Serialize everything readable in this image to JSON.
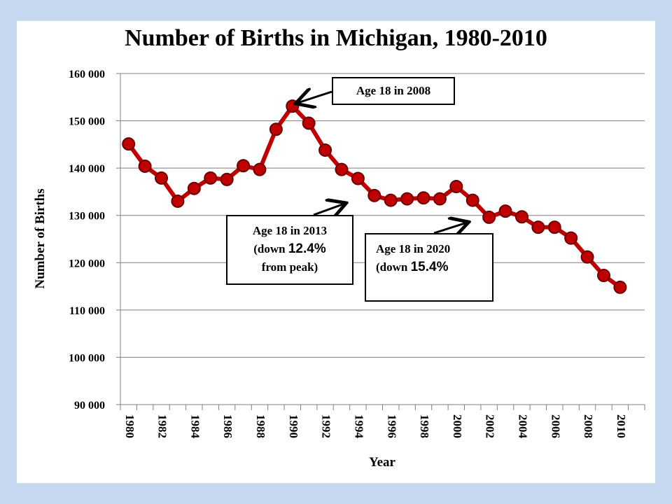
{
  "chart_data": {
    "type": "line",
    "title": "Number of Births in Michigan, 1980-2010",
    "xlabel": "Year",
    "ylabel": "Number of Births",
    "ylim": [
      90000,
      160000
    ],
    "yticks": [
      90000,
      100000,
      110000,
      120000,
      130000,
      140000,
      150000,
      160000
    ],
    "ytick_labels": [
      "90 000",
      "100 000",
      "110 000",
      "120 000",
      "130 000",
      "140 000",
      "150 000",
      "160 000"
    ],
    "xticks": [
      "1980",
      "1982",
      "1984",
      "1986",
      "1988",
      "1990",
      "1992",
      "1994",
      "1996",
      "1998",
      "2000",
      "2002",
      "2004",
      "2006",
      "2008",
      "2010"
    ],
    "grid": true,
    "series": [
      {
        "color": "#c00000",
        "x": [
          1980,
          1981,
          1982,
          1983,
          1984,
          1985,
          1986,
          1987,
          1988,
          1989,
          1990,
          1991,
          1992,
          1993,
          1994,
          1995,
          1996,
          1997,
          1998,
          1999,
          2000,
          2001,
          2002,
          2003,
          2004,
          2005,
          2006,
          2007,
          2008,
          2009,
          2010
        ],
        "values": [
          145100,
          140400,
          137900,
          133000,
          135700,
          137900,
          137600,
          140500,
          139700,
          148200,
          153100,
          149500,
          143800,
          139700,
          137800,
          134200,
          133200,
          133500,
          133700,
          133500,
          136100,
          133200,
          129600,
          130900,
          129700,
          127500,
          127500,
          125200,
          121200,
          117300,
          114800
        ]
      }
    ],
    "annotations": [
      {
        "lines": [
          "Age 18 in 2008"
        ]
      },
      {
        "lines": [
          "Age 18 in 2013",
          "(down ",
          "12.4%",
          "from peak)"
        ]
      },
      {
        "lines": [
          "Age 18 in 2020",
          "(down ",
          "15.4%"
        ]
      }
    ]
  }
}
